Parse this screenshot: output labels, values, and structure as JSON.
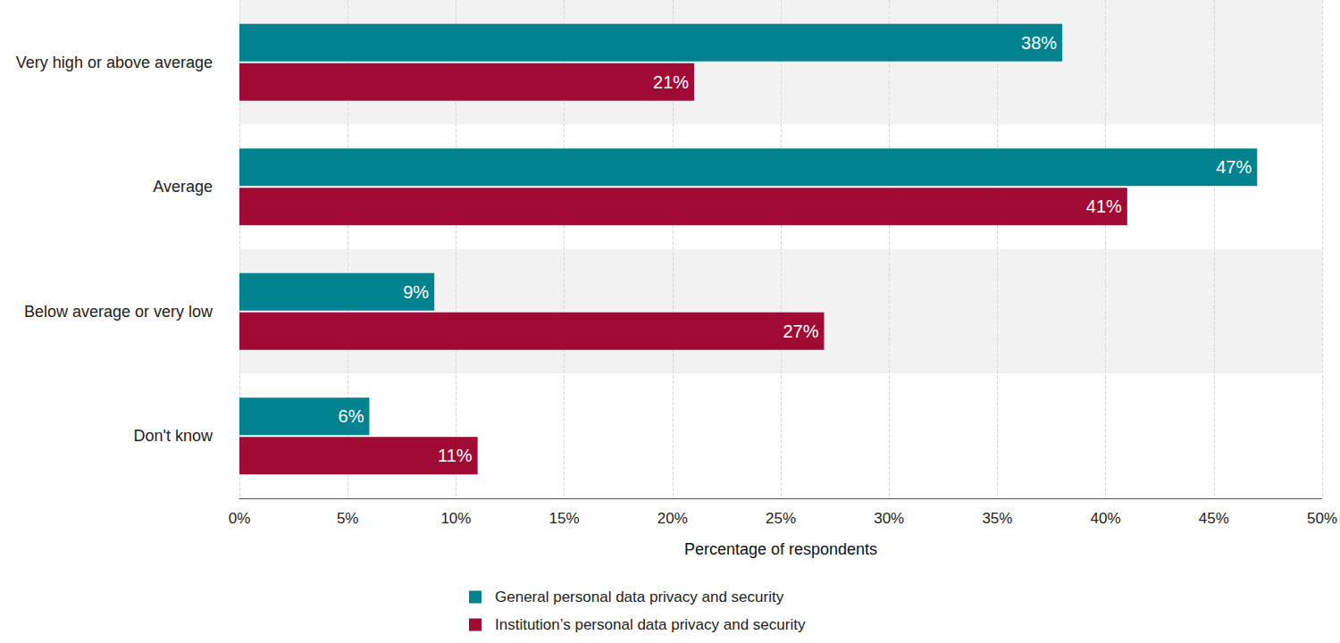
{
  "chart_data": {
    "type": "bar",
    "orientation": "horizontal",
    "categories": [
      "Very high or above average",
      "Average",
      "Below average or very low",
      "Don't know"
    ],
    "series": [
      {
        "name": "General personal data privacy and security",
        "color": "#00838f",
        "values": [
          38,
          47,
          9,
          6
        ],
        "value_labels": [
          "38%",
          "47%",
          "9%",
          "6%"
        ]
      },
      {
        "name": "Institution’s personal data privacy and security",
        "color": "#a00a35",
        "values": [
          21,
          41,
          27,
          11
        ],
        "value_labels": [
          "21%",
          "41%",
          "27%",
          "11%"
        ]
      }
    ],
    "x_label": "Percentage of respondents",
    "xlim": [
      0,
      50
    ],
    "xticks": [
      {
        "value": 0,
        "label": "0%"
      },
      {
        "value": 5,
        "label": "5%"
      },
      {
        "value": 10,
        "label": "10%"
      },
      {
        "value": 15,
        "label": "15%"
      },
      {
        "value": 20,
        "label": "20%"
      },
      {
        "value": 25,
        "label": "25%"
      },
      {
        "value": 30,
        "label": "30%"
      },
      {
        "value": 35,
        "label": "35%"
      },
      {
        "value": 40,
        "label": "40%"
      },
      {
        "value": 45,
        "label": "45%"
      },
      {
        "value": 50,
        "label": "50%"
      }
    ],
    "grid": true,
    "data_labels": true,
    "legend": "bottom"
  }
}
